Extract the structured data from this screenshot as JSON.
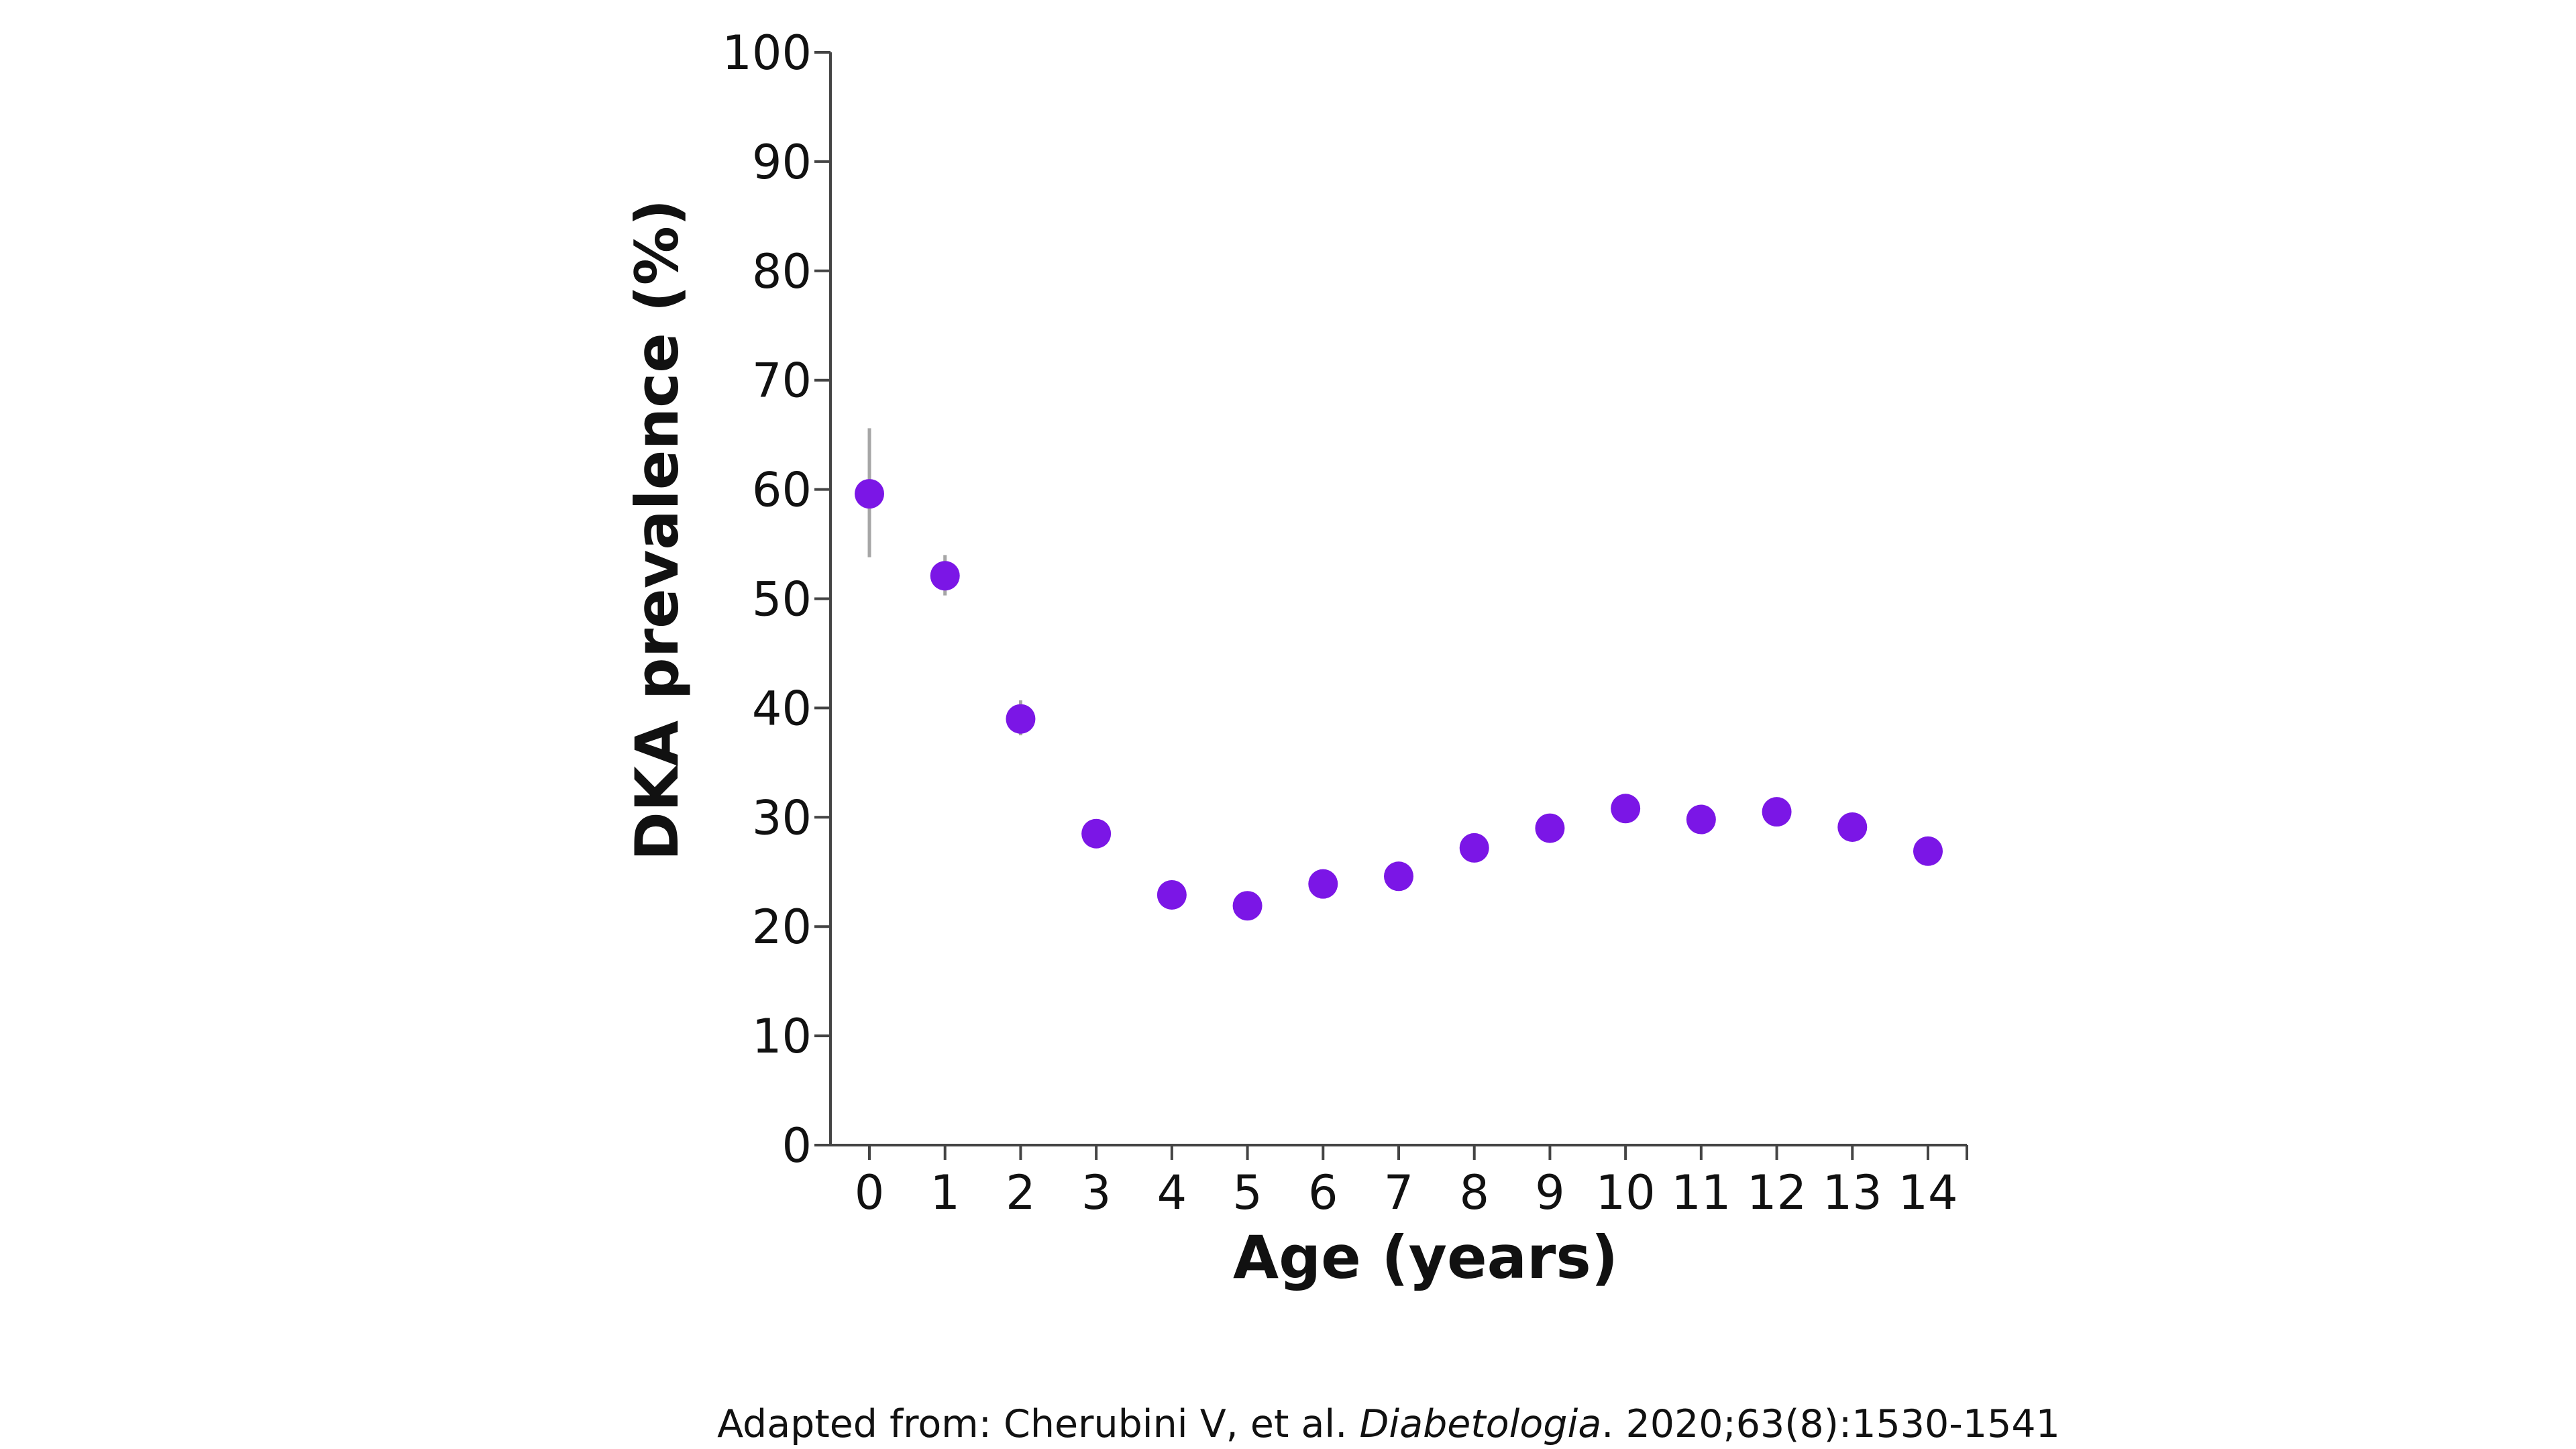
{
  "chart_data": {
    "type": "scatter",
    "title": "",
    "xlabel": "Age (years)",
    "ylabel": "DKA prevalence (%)",
    "xlim": [
      0,
      14
    ],
    "ylim": [
      0,
      100
    ],
    "x_ticks": [
      "0",
      "1",
      "2",
      "3",
      "4",
      "5",
      "6",
      "7",
      "8",
      "9",
      "10",
      "11",
      "12",
      "13",
      "14"
    ],
    "y_ticks": [
      "0",
      "10",
      "20",
      "30",
      "40",
      "50",
      "60",
      "70",
      "80",
      "90",
      "100"
    ],
    "grid": false,
    "legend": "none",
    "marker_color": "#7B16E6",
    "error_bar_color": "#A6A6A6",
    "series": [
      {
        "x": [
          0,
          1,
          2,
          3,
          4,
          5,
          6,
          7,
          8,
          9,
          10,
          11,
          12,
          13,
          14
        ],
        "y": [
          59.6,
          52.1,
          39.0,
          28.5,
          22.9,
          21.9,
          23.9,
          24.6,
          27.2,
          29.0,
          30.8,
          29.8,
          30.5,
          29.1,
          26.9
        ],
        "y_lower": [
          53.8,
          50.3,
          37.5,
          27.6,
          22.1,
          21.1,
          23.1,
          23.8,
          26.5,
          28.3,
          30.1,
          29.1,
          29.8,
          28.4,
          26.1
        ],
        "y_upper": [
          65.6,
          54.0,
          40.7,
          29.4,
          23.7,
          22.7,
          24.7,
          25.4,
          27.9,
          29.7,
          31.5,
          30.5,
          31.2,
          29.8,
          27.7
        ]
      }
    ]
  },
  "source": {
    "prefix": "Adapted from: Cherubini V, et al. ",
    "journal": "Diabetologia",
    "suffix": ". 2020;63(8):1530-1541"
  }
}
